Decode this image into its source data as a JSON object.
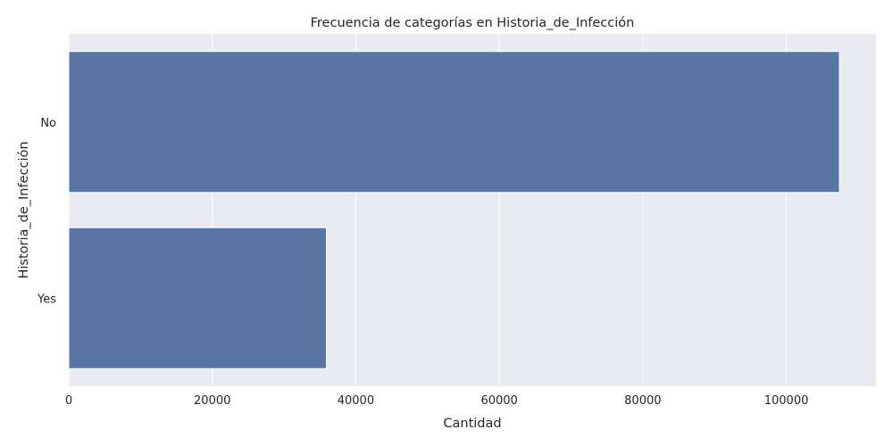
{
  "chart_data": {
    "type": "bar",
    "orientation": "horizontal",
    "title": "Frecuencia de categorías en Historia_de_Infección",
    "xlabel": "Cantidad",
    "ylabel": "Historia_de_Infección",
    "categories": [
      "No",
      "Yes"
    ],
    "values": [
      107400,
      35900
    ],
    "xlim": [
      0,
      112500
    ],
    "xticks": [
      0,
      20000,
      40000,
      60000,
      80000,
      100000
    ],
    "xtick_labels": [
      "0",
      "20000",
      "40000",
      "60000",
      "80000",
      "100000"
    ],
    "grid": true,
    "colors": {
      "bar": "#5975a4",
      "plot_background": "#eaeaf2",
      "grid": "#ffffff",
      "text": "#262626"
    }
  }
}
